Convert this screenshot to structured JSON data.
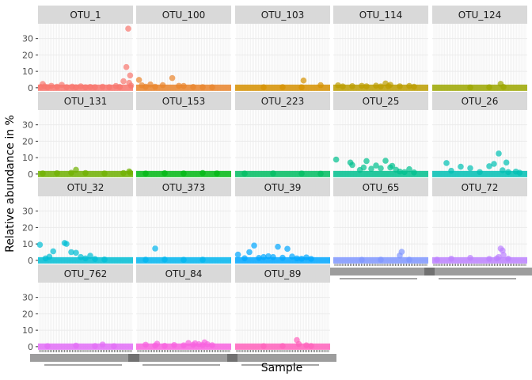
{
  "chart_data": {
    "type": "scatter",
    "title": "",
    "xlabel": "Sample",
    "ylabel": "Relative abundance in %",
    "ylim": [
      -2,
      39
    ],
    "yticks": [
      0,
      10,
      20,
      30
    ],
    "grid": true,
    "facet_columns": 5,
    "legend": "none",
    "panels": [
      {
        "name": "OTU_1",
        "color": "#F8766D",
        "points": [
          [
            0.03,
            0.5
          ],
          [
            0.05,
            2.3
          ],
          [
            0.07,
            0.8
          ],
          [
            0.1,
            0.4
          ],
          [
            0.14,
            1.2
          ],
          [
            0.2,
            0.6
          ],
          [
            0.25,
            1.8
          ],
          [
            0.3,
            0.4
          ],
          [
            0.36,
            0.7
          ],
          [
            0.4,
            0.3
          ],
          [
            0.45,
            0.9
          ],
          [
            0.5,
            0.3
          ],
          [
            0.55,
            0.5
          ],
          [
            0.6,
            0.4
          ],
          [
            0.68,
            0.6
          ],
          [
            0.75,
            0.4
          ],
          [
            0.82,
            1.1
          ],
          [
            0.86,
            0.5
          ],
          [
            0.9,
            4.0
          ],
          [
            0.93,
            12.6
          ],
          [
            0.95,
            36.0
          ],
          [
            0.96,
            3.0
          ],
          [
            0.97,
            7.5
          ],
          [
            0.98,
            1.3
          ]
        ]
      },
      {
        "name": "OTU_100",
        "color": "#E9842C",
        "points": [
          [
            0.03,
            4.8
          ],
          [
            0.06,
            1.5
          ],
          [
            0.1,
            0.6
          ],
          [
            0.15,
            2.0
          ],
          [
            0.2,
            0.6
          ],
          [
            0.28,
            1.6
          ],
          [
            0.38,
            5.9
          ],
          [
            0.45,
            1.2
          ],
          [
            0.5,
            1.1
          ],
          [
            0.6,
            0.5
          ],
          [
            0.7,
            0.4
          ],
          [
            0.8,
            0.3
          ]
        ]
      },
      {
        "name": "OTU_103",
        "color": "#D69100",
        "points": [
          [
            0.3,
            0.3
          ],
          [
            0.5,
            0.4
          ],
          [
            0.7,
            0.3
          ],
          [
            0.72,
            4.4
          ],
          [
            0.9,
            1.6
          ]
        ]
      },
      {
        "name": "OTU_114",
        "color": "#BC9D00",
        "points": [
          [
            0.05,
            1.5
          ],
          [
            0.1,
            0.8
          ],
          [
            0.2,
            1.0
          ],
          [
            0.3,
            1.2
          ],
          [
            0.35,
            0.9
          ],
          [
            0.45,
            1.3
          ],
          [
            0.5,
            0.8
          ],
          [
            0.55,
            2.6
          ],
          [
            0.58,
            1.0
          ],
          [
            0.6,
            1.8
          ],
          [
            0.7,
            0.9
          ],
          [
            0.8,
            1.1
          ],
          [
            0.85,
            0.6
          ]
        ]
      },
      {
        "name": "OTU_124",
        "color": "#9CA700",
        "points": [
          [
            0.4,
            0.2
          ],
          [
            0.6,
            0.3
          ],
          [
            0.72,
            2.4
          ],
          [
            0.75,
            0.5
          ]
        ]
      },
      {
        "name": "OTU_131",
        "color": "#6FB000",
        "points": [
          [
            0.05,
            0.4
          ],
          [
            0.2,
            0.5
          ],
          [
            0.35,
            0.8
          ],
          [
            0.4,
            2.6
          ],
          [
            0.5,
            0.6
          ],
          [
            0.7,
            0.4
          ],
          [
            0.9,
            0.6
          ],
          [
            0.96,
            1.6
          ],
          [
            0.97,
            0.8
          ]
        ]
      },
      {
        "name": "OTU_153",
        "color": "#00B813",
        "points": [
          [
            0.1,
            0.3
          ],
          [
            0.3,
            0.5
          ],
          [
            0.5,
            0.4
          ],
          [
            0.7,
            0.6
          ],
          [
            0.85,
            0.4
          ]
        ]
      },
      {
        "name": "OTU_223",
        "color": "#00BD61",
        "points": [
          [
            0.1,
            0.3
          ],
          [
            0.4,
            0.4
          ],
          [
            0.7,
            0.3
          ],
          [
            0.9,
            0.2
          ]
        ]
      },
      {
        "name": "OTU_25",
        "color": "#00C08E",
        "points": [
          [
            0.03,
            8.8
          ],
          [
            0.18,
            7.0
          ],
          [
            0.2,
            5.5
          ],
          [
            0.28,
            2.5
          ],
          [
            0.32,
            4.0
          ],
          [
            0.35,
            7.9
          ],
          [
            0.4,
            3.2
          ],
          [
            0.45,
            5.2
          ],
          [
            0.5,
            3.5
          ],
          [
            0.55,
            8.1
          ],
          [
            0.6,
            4.0
          ],
          [
            0.62,
            5.0
          ],
          [
            0.66,
            2.6
          ],
          [
            0.7,
            1.5
          ],
          [
            0.75,
            1.2
          ],
          [
            0.8,
            3.0
          ],
          [
            0.85,
            1.0
          ]
        ]
      },
      {
        "name": "OTU_26",
        "color": "#00C0B4",
        "points": [
          [
            0.15,
            6.7
          ],
          [
            0.2,
            2.0
          ],
          [
            0.3,
            4.5
          ],
          [
            0.4,
            3.6
          ],
          [
            0.5,
            1.2
          ],
          [
            0.6,
            4.8
          ],
          [
            0.65,
            6.2
          ],
          [
            0.7,
            12.5
          ],
          [
            0.74,
            2.3
          ],
          [
            0.78,
            7.0
          ],
          [
            0.8,
            1.2
          ],
          [
            0.88,
            1.5
          ],
          [
            0.92,
            0.8
          ]
        ]
      },
      {
        "name": "OTU_32",
        "color": "#00BDD4",
        "points": [
          [
            0.02,
            9.5
          ],
          [
            0.08,
            1.2
          ],
          [
            0.12,
            2.2
          ],
          [
            0.16,
            5.5
          ],
          [
            0.28,
            10.6
          ],
          [
            0.3,
            10.0
          ],
          [
            0.35,
            5.0
          ],
          [
            0.4,
            4.6
          ],
          [
            0.45,
            2.0
          ],
          [
            0.5,
            1.2
          ],
          [
            0.55,
            2.8
          ],
          [
            0.6,
            0.8
          ],
          [
            0.7,
            0.5
          ]
        ]
      },
      {
        "name": "OTU_373",
        "color": "#00B5EE",
        "points": [
          [
            0.1,
            0.4
          ],
          [
            0.2,
            7.2
          ],
          [
            0.3,
            0.5
          ],
          [
            0.5,
            0.3
          ],
          [
            0.7,
            0.4
          ]
        ]
      },
      {
        "name": "OTU_39",
        "color": "#00A7FF",
        "points": [
          [
            0.03,
            3.5
          ],
          [
            0.1,
            1.3
          ],
          [
            0.15,
            5.0
          ],
          [
            0.2,
            9.0
          ],
          [
            0.25,
            1.5
          ],
          [
            0.3,
            2.0
          ],
          [
            0.35,
            2.5
          ],
          [
            0.4,
            2.0
          ],
          [
            0.45,
            8.3
          ],
          [
            0.5,
            1.6
          ],
          [
            0.55,
            7.0
          ],
          [
            0.6,
            2.3
          ],
          [
            0.65,
            1.2
          ],
          [
            0.7,
            1.0
          ],
          [
            0.75,
            1.8
          ],
          [
            0.8,
            0.9
          ]
        ]
      },
      {
        "name": "OTU_65",
        "color": "#7F96FF",
        "points": [
          [
            0.3,
            0.3
          ],
          [
            0.5,
            0.4
          ],
          [
            0.7,
            2.9
          ],
          [
            0.72,
            5.2
          ],
          [
            0.8,
            0.4
          ]
        ]
      },
      {
        "name": "OTU_72",
        "color": "#BC81FF",
        "points": [
          [
            0.05,
            0.4
          ],
          [
            0.2,
            1.0
          ],
          [
            0.4,
            1.5
          ],
          [
            0.6,
            0.9
          ],
          [
            0.68,
            1.2
          ],
          [
            0.7,
            2.0
          ],
          [
            0.72,
            7.2
          ],
          [
            0.74,
            6.0
          ],
          [
            0.75,
            3.3
          ],
          [
            0.8,
            1.0
          ]
        ]
      },
      {
        "name": "OTU_762",
        "color": "#E26EF7",
        "points": [
          [
            0.1,
            0.3
          ],
          [
            0.4,
            0.6
          ],
          [
            0.6,
            0.4
          ],
          [
            0.68,
            1.3
          ],
          [
            0.8,
            0.3
          ]
        ]
      },
      {
        "name": "OTU_84",
        "color": "#F863DF",
        "points": [
          [
            0.1,
            1.2
          ],
          [
            0.2,
            0.7
          ],
          [
            0.22,
            1.8
          ],
          [
            0.3,
            0.5
          ],
          [
            0.4,
            1.0
          ],
          [
            0.5,
            0.8
          ],
          [
            0.55,
            2.2
          ],
          [
            0.6,
            1.1
          ],
          [
            0.62,
            2.0
          ],
          [
            0.66,
            1.5
          ],
          [
            0.7,
            1.0
          ],
          [
            0.72,
            2.6
          ],
          [
            0.75,
            1.5
          ],
          [
            0.8,
            0.9
          ]
        ]
      },
      {
        "name": "OTU_89",
        "color": "#FF62BC",
        "points": [
          [
            0.3,
            0.3
          ],
          [
            0.5,
            0.4
          ],
          [
            0.65,
            4.0
          ],
          [
            0.67,
            1.6
          ],
          [
            0.75,
            0.8
          ],
          [
            0.8,
            0.4
          ]
        ]
      }
    ]
  }
}
